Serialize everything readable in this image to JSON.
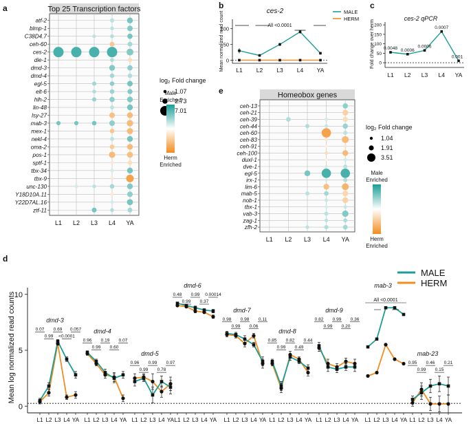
{
  "colors": {
    "male": "#1a9e96",
    "herm": "#f28c1e",
    "grid": "#bdbdbd",
    "plotBg": "#fbfbfb",
    "header": "#d9d9d9"
  },
  "chart_data": [
    {
      "panel": "a",
      "type": "bubble",
      "title": "Top 25 Transcription factors",
      "stages": [
        "L1",
        "L2",
        "L3",
        "L4",
        "YA"
      ],
      "genes": [
        "atf-2",
        "blmp-1",
        "C38D4.7",
        "ceh-60",
        "ces-2",
        "die-1",
        "dmd-3",
        "dmd-4",
        "egl-5",
        "elt-6",
        "hlh-2",
        "lin-48",
        "lsy-27",
        "mab-3",
        "mex-1",
        "nekl-4",
        "oma-2",
        "pos-1",
        "sptf-1",
        "tbx-34",
        "tbx-9",
        "unc-130",
        "Y18D10A.11",
        "Y22D7AL.16",
        "ztf-11"
      ],
      "size_legend": {
        "title": "log2 Fold change",
        "values": [
          "1.07",
          "2.73",
          "7.01"
        ]
      },
      "color_legend": {
        "top": "Male Enriched",
        "bottom": "Herm Enriched"
      },
      "bubbles": [
        [
          "atf-2",
          "L4",
          2.2,
          0.3
        ],
        [
          "atf-2",
          "YA",
          3.4,
          0.6
        ],
        [
          "blmp-1",
          "L4",
          1.8,
          0.3
        ],
        [
          "blmp-1",
          "YA",
          3.2,
          0.55
        ],
        [
          "C38D4.7",
          "L3",
          1.6,
          0.3
        ],
        [
          "C38D4.7",
          "L4",
          1.8,
          0.35
        ],
        [
          "C38D4.7",
          "YA",
          3.0,
          0.6
        ],
        [
          "ceh-60",
          "L4",
          2.6,
          -0.5
        ],
        [
          "ceh-60",
          "YA",
          2.6,
          0.4
        ],
        [
          "ces-2",
          "L1",
          7.0,
          0.8
        ],
        [
          "ces-2",
          "L2",
          7.0,
          0.8
        ],
        [
          "ces-2",
          "L3",
          7.0,
          0.8
        ],
        [
          "ces-2",
          "L4",
          7.0,
          0.8
        ],
        [
          "ces-2",
          "YA",
          4.2,
          0.55
        ],
        [
          "die-1",
          "L4",
          2.0,
          0.35
        ],
        [
          "die-1",
          "YA",
          2.2,
          -0.3
        ],
        [
          "dmd-3",
          "L4",
          3.4,
          0.55
        ],
        [
          "dmd-3",
          "YA",
          3.0,
          0.5
        ],
        [
          "dmd-4",
          "L4",
          2.4,
          0.4
        ],
        [
          "dmd-4",
          "YA",
          2.4,
          0.35
        ],
        [
          "egl-5",
          "L3",
          2.2,
          0.4
        ],
        [
          "egl-5",
          "L4",
          2.4,
          0.5
        ],
        [
          "egl-5",
          "YA",
          3.2,
          0.6
        ],
        [
          "elt-6",
          "L3",
          1.8,
          0.35
        ],
        [
          "elt-6",
          "L4",
          2.4,
          0.45
        ],
        [
          "elt-6",
          "YA",
          2.8,
          0.55
        ],
        [
          "hlh-2",
          "L3",
          2.2,
          0.45
        ],
        [
          "hlh-2",
          "L4",
          3.0,
          0.5
        ],
        [
          "hlh-2",
          "YA",
          3.4,
          0.55
        ],
        [
          "lin-48",
          "L4",
          2.0,
          0.3
        ],
        [
          "lin-48",
          "YA",
          3.4,
          0.6
        ],
        [
          "lsy-27",
          "L4",
          3.2,
          -0.55
        ],
        [
          "lsy-27",
          "YA",
          3.4,
          -0.6
        ],
        [
          "mab-3",
          "L1",
          2.2,
          0.6
        ],
        [
          "mab-3",
          "L2",
          2.2,
          0.6
        ],
        [
          "mab-3",
          "L3",
          2.4,
          0.6
        ],
        [
          "mab-3",
          "L4",
          3.2,
          0.5
        ],
        [
          "mab-3",
          "YA",
          3.8,
          -0.6
        ],
        [
          "mex-1",
          "L4",
          2.4,
          -0.5
        ],
        [
          "mex-1",
          "YA",
          3.6,
          -0.6
        ],
        [
          "nekl-4",
          "L4",
          2.0,
          0.3
        ],
        [
          "nekl-4",
          "YA",
          3.4,
          0.6
        ],
        [
          "oma-2",
          "L4",
          2.6,
          -0.45
        ],
        [
          "oma-2",
          "YA",
          3.4,
          -0.6
        ],
        [
          "pos-1",
          "L4",
          3.8,
          -0.6
        ],
        [
          "pos-1",
          "YA",
          3.6,
          -0.55
        ],
        [
          "sptf-1",
          "L4",
          1.6,
          -0.2
        ],
        [
          "sptf-1",
          "YA",
          2.4,
          -0.3
        ],
        [
          "tbx-34",
          "L4",
          1.6,
          0.2
        ],
        [
          "tbx-34",
          "YA",
          3.4,
          0.6
        ],
        [
          "tbx-9",
          "L4",
          1.4,
          -0.2
        ],
        [
          "tbx-9",
          "YA",
          4.8,
          -0.8
        ],
        [
          "unc-130",
          "L2",
          1.6,
          0.2
        ],
        [
          "unc-130",
          "L3",
          1.8,
          0.3
        ],
        [
          "unc-130",
          "L4",
          2.4,
          0.4
        ],
        [
          "unc-130",
          "YA",
          3.4,
          0.55
        ],
        [
          "Y18D10A.11",
          "L4",
          1.6,
          -0.2
        ],
        [
          "Y18D10A.11",
          "YA",
          3.2,
          0.5
        ],
        [
          "Y22D7AL.16",
          "L4",
          1.4,
          0.2
        ],
        [
          "Y22D7AL.16",
          "YA",
          3.6,
          0.6
        ],
        [
          "ztf-11",
          "L3",
          2.6,
          0.6
        ],
        [
          "ztf-11",
          "L4",
          1.8,
          0.35
        ],
        [
          "ztf-11",
          "YA",
          2.6,
          0.4
        ]
      ]
    },
    {
      "panel": "b",
      "type": "line",
      "title": "ces-2",
      "ylabel": "Mean normalized read count",
      "categories": [
        "L1",
        "L2",
        "L3",
        "L4",
        "YA"
      ],
      "ylim": [
        -10,
        130
      ],
      "yticks": [
        0,
        50,
        100
      ],
      "annotation": "All <0.0001",
      "series": [
        {
          "name": "MALE",
          "values": [
            30,
            15,
            50,
            90,
            22
          ],
          "errors": [
            8,
            3,
            5,
            6,
            4
          ]
        },
        {
          "name": "HERM",
          "values": [
            0,
            0,
            0,
            0,
            0
          ],
          "errors": [
            0,
            0,
            0,
            0,
            0
          ]
        }
      ]
    },
    {
      "panel": "c",
      "type": "line",
      "title": "ces-2 qPCR",
      "ylabel": "Fold change over herm",
      "categories": [
        "L1",
        "L2",
        "L3",
        "L4",
        "YA"
      ],
      "ylim": [
        -25,
        215
      ],
      "yticks": [
        0,
        50,
        100,
        150,
        200
      ],
      "values": [
        55,
        45,
        65,
        165,
        10
      ],
      "labels": [
        "0.0048",
        "0.0006",
        "0.0006",
        "0.0007",
        "0.001"
      ]
    },
    {
      "panel": "e",
      "type": "bubble",
      "title": "Homeobox genes",
      "stages": [
        "L1",
        "L2",
        "L3",
        "L4",
        "YA"
      ],
      "genes": [
        "ceh-13",
        "ceh-21",
        "ceh-39",
        "ceh-44",
        "ceh-60",
        "ceh-83",
        "ceh-91",
        "ceh-100",
        "duxl-1",
        "dve-1",
        "egl-5",
        "irx-1",
        "lim-6",
        "mab-5",
        "nob-1",
        "tbx-1",
        "vab-3",
        "zag-1",
        "zfh-2"
      ],
      "size_legend": {
        "title": "log2 Fold change",
        "values": [
          "1.04",
          "1.91",
          "3.51"
        ]
      },
      "color_legend": {
        "top": "Male Enriched",
        "bottom": "Herm Enriched"
      },
      "bubbles": [
        [
          "ceh-13",
          "YA",
          2.0,
          0.5
        ],
        [
          "ceh-21",
          "YA",
          2.2,
          -0.4
        ],
        [
          "ceh-39",
          "L2",
          1.8,
          0.35
        ],
        [
          "ceh-39",
          "L4",
          1.4,
          0.2
        ],
        [
          "ceh-39",
          "YA",
          2.0,
          -0.3
        ],
        [
          "ceh-44",
          "L3",
          1.6,
          0.35
        ],
        [
          "ceh-44",
          "L4",
          1.4,
          0.25
        ],
        [
          "ceh-44",
          "YA",
          2.0,
          0.45
        ],
        [
          "ceh-60",
          "L4",
          3.5,
          -0.8
        ],
        [
          "ceh-60",
          "YA",
          1.6,
          0.3
        ],
        [
          "ceh-83",
          "L4",
          1.4,
          -0.2
        ],
        [
          "ceh-83",
          "YA",
          2.6,
          -0.6
        ],
        [
          "ceh-91",
          "L4",
          1.2,
          -0.15
        ],
        [
          "ceh-91",
          "YA",
          1.4,
          -0.2
        ],
        [
          "ceh-100",
          "L4",
          1.4,
          -0.3
        ],
        [
          "ceh-100",
          "YA",
          2.2,
          -0.6
        ],
        [
          "duxl-1",
          "L4",
          1.2,
          -0.15
        ],
        [
          "duxl-1",
          "YA",
          1.4,
          0.2
        ],
        [
          "dve-1",
          "L4",
          1.2,
          0.2
        ],
        [
          "dve-1",
          "YA",
          1.6,
          0.3
        ],
        [
          "egl-5",
          "L3",
          2.2,
          0.6
        ],
        [
          "egl-5",
          "L4",
          3.5,
          0.8
        ],
        [
          "egl-5",
          "YA",
          3.5,
          0.8
        ],
        [
          "irx-1",
          "L4",
          1.2,
          0.2
        ],
        [
          "irx-1",
          "YA",
          1.6,
          0.35
        ],
        [
          "lim-6",
          "L4",
          2.2,
          -0.55
        ],
        [
          "lim-6",
          "YA",
          2.6,
          -0.65
        ],
        [
          "mab-5",
          "L3",
          1.6,
          0.3
        ],
        [
          "mab-5",
          "L4",
          1.8,
          0.4
        ],
        [
          "mab-5",
          "YA",
          2.2,
          -0.35
        ],
        [
          "nob-1",
          "L4",
          1.4,
          0.25
        ],
        [
          "nob-1",
          "YA",
          2.2,
          -0.4
        ],
        [
          "tbx-1",
          "L4",
          1.2,
          0.2
        ],
        [
          "tbx-1",
          "YA",
          1.4,
          0.25
        ],
        [
          "vab-3",
          "L4",
          1.6,
          0.3
        ],
        [
          "vab-3",
          "YA",
          2.4,
          0.55
        ],
        [
          "zag-1",
          "L4",
          1.4,
          0.3
        ],
        [
          "zag-1",
          "YA",
          1.6,
          0.35
        ],
        [
          "zfh-2",
          "L3",
          1.4,
          0.3
        ],
        [
          "zfh-2",
          "L4",
          1.6,
          0.35
        ],
        [
          "zfh-2",
          "YA",
          1.8,
          0.4
        ]
      ]
    },
    {
      "panel": "d",
      "type": "line",
      "ylabel": "Mean log normalized read counts",
      "ylim": [
        -0.6,
        10.6
      ],
      "yticks": [
        0,
        5,
        10
      ],
      "baseline": 0.25,
      "stages": [
        "L1",
        "L2",
        "L3",
        "L4",
        "YA"
      ],
      "legend": [
        "MALE",
        "HERM"
      ],
      "genes": [
        {
          "name": "dmd-3",
          "male": [
            0.5,
            1.8,
            5.8,
            4.2,
            2.8
          ],
          "herm": [
            0.4,
            1.2,
            5.6,
            0.8,
            1.0
          ],
          "err": [
            0.2,
            0.3,
            0.15,
            0.2,
            0.3
          ],
          "pvals": [
            "0.07",
            "0.69",
            "0.057"
          ],
          "pvals2": [
            "0.99",
            "<0.0001"
          ],
          "title_level": 7.5
        },
        {
          "name": "dmd-4",
          "male": [
            4.8,
            4.0,
            3.0,
            2.5,
            2.8
          ],
          "herm": [
            4.7,
            3.8,
            2.8,
            2.6,
            0.7
          ],
          "err": [
            0.15,
            0.2,
            0.3,
            0.4,
            0.3
          ],
          "pvals": [
            "0.96",
            "0.19",
            "0.07"
          ],
          "pvals2": [
            "0.99",
            "0.60"
          ],
          "title_level": 6.5
        },
        {
          "name": "dmd-5",
          "male": [
            2.2,
            2.5,
            1.0,
            2.2,
            1.7
          ],
          "herm": [
            2.5,
            2.6,
            2.2,
            1.3,
            2.0
          ],
          "err": [
            0.4,
            0.3,
            0.7,
            0.5,
            0.6
          ],
          "pvals": [
            "0.96",
            "0.99",
            "0.97"
          ],
          "pvals2": [
            "0.99",
            "0.78"
          ],
          "title_level": 4.5
        },
        {
          "name": "dmd-6",
          "male": [
            9.2,
            9.0,
            8.8,
            8.6,
            8.5
          ],
          "herm": [
            9.0,
            8.9,
            8.5,
            8.4,
            8.0
          ],
          "err": [
            0.1,
            0.1,
            0.15,
            0.1,
            0.15
          ],
          "pvals": [
            "0.48",
            "0.99",
            "0.00014"
          ],
          "pvals2": [
            "0.99",
            "0.37"
          ],
          "title_level": 10.6
        },
        {
          "name": "dmd-7",
          "male": [
            6.5,
            6.4,
            6.0,
            5.5,
            4.0
          ],
          "herm": [
            6.4,
            6.3,
            5.6,
            6.3,
            3.8
          ],
          "err": [
            0.2,
            0.2,
            0.3,
            0.2,
            0.4
          ],
          "pvals": [
            "0.98",
            "0.98",
            "0.11"
          ],
          "pvals2": [
            "0.99",
            "0.06"
          ],
          "title_level": 8.4
        },
        {
          "name": "dmd-8",
          "male": [
            4.0,
            1.8,
            4.4,
            4.0,
            3.4
          ],
          "herm": [
            3.8,
            1.6,
            4.6,
            4.2,
            3.0
          ],
          "err": [
            0.2,
            0.4,
            0.3,
            0.2,
            0.3
          ],
          "pvals": [
            "0.85",
            "0.82",
            "0.44"
          ],
          "pvals2": [
            "0.99",
            "0.49"
          ],
          "title_level": 6.5
        },
        {
          "name": "dmd-9",
          "male": [
            5.4,
            3.5,
            3.3,
            3.5,
            3.5
          ],
          "herm": [
            5.2,
            3.8,
            3.5,
            4.0,
            3.8
          ],
          "err": [
            0.3,
            0.4,
            0.3,
            0.3,
            0.4
          ],
          "pvals": [
            "0.82",
            "0.99",
            "0.36"
          ],
          "pvals2": [
            "0.99",
            "0.20"
          ],
          "title_level": 8.4
        },
        {
          "name": "mab-3",
          "male": [
            5.3,
            6.0,
            8.8,
            8.8,
            8.2
          ],
          "herm": [
            2.7,
            3.0,
            5.5,
            4.2,
            3.8
          ],
          "err": [
            0.1,
            0.1,
            0.1,
            0.1,
            0.1
          ],
          "pvals": [],
          "pvals2": [],
          "title_level": 10.6
        },
        {
          "name": "mab-23",
          "male": [
            0.6,
            1.2,
            1.8,
            2.0,
            1.8
          ],
          "herm": [
            0.3,
            1.5,
            0.2,
            0.2,
            0.2
          ],
          "err": [
            0.3,
            0.6,
            0.6,
            0.7,
            0.8
          ],
          "pvals": [
            "0.95",
            "0.46",
            "0.21"
          ],
          "pvals2": [
            "0.99",
            "0.15"
          ],
          "title_level": 4.5
        }
      ],
      "mab3_annotation": "All <0.0001"
    }
  ]
}
